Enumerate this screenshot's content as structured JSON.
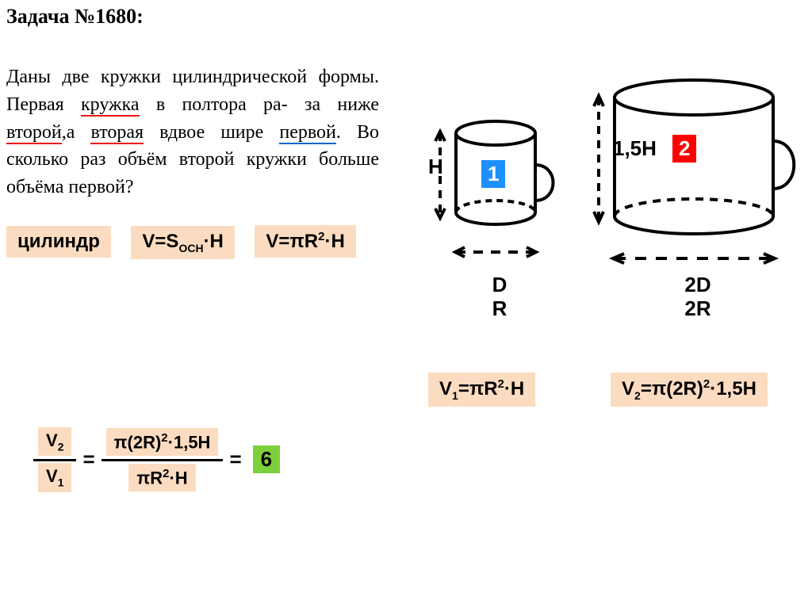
{
  "title": "Задача №1680:",
  "problem_html": "Даны две кружки цилиндрической формы. Первая <span class='u-red'>кружка</span> в полтора ра- за ниже <span class='u-red'>второй</span>,а <span class='u-red'>вторая</span> вдвое шире <span class='u-blue'>первой</span>. Во сколько раз объём второй кружки больше объёма первой?",
  "formulas": {
    "shape": "цилиндр",
    "f1": "V=S<span class='sub'>ОСН</span>·H",
    "f2": "V=πR<span class='sup'>2</span>·H",
    "v1": "V<span class='sub'>1</span>=πR<span class='sup'>2</span>·H",
    "v2": "V<span class='sub'>2</span>=π(2R)<span class='sup'>2</span>·1,5H"
  },
  "diagram": {
    "H": "H",
    "H2": "1,5H",
    "cup1_badge": "1",
    "cup2_badge": "2",
    "D": "D",
    "R": "R",
    "D2": "2D",
    "R2": "2R",
    "colors": {
      "stroke": "#000000",
      "badge1": "#1e90ff",
      "badge2": "#ff0000",
      "highlight": "#fcdcc0",
      "answer": "#7ecf3c"
    }
  },
  "ratio": {
    "num_left": "V<span class='sub'>2</span>",
    "den_left": "V<span class='sub'>1</span>",
    "num_right": "π(2R)<span class='sup'>2</span>·1,5H",
    "den_right": "πR<span class='sup'>2</span>·H",
    "eq": "=",
    "answer": "6"
  }
}
